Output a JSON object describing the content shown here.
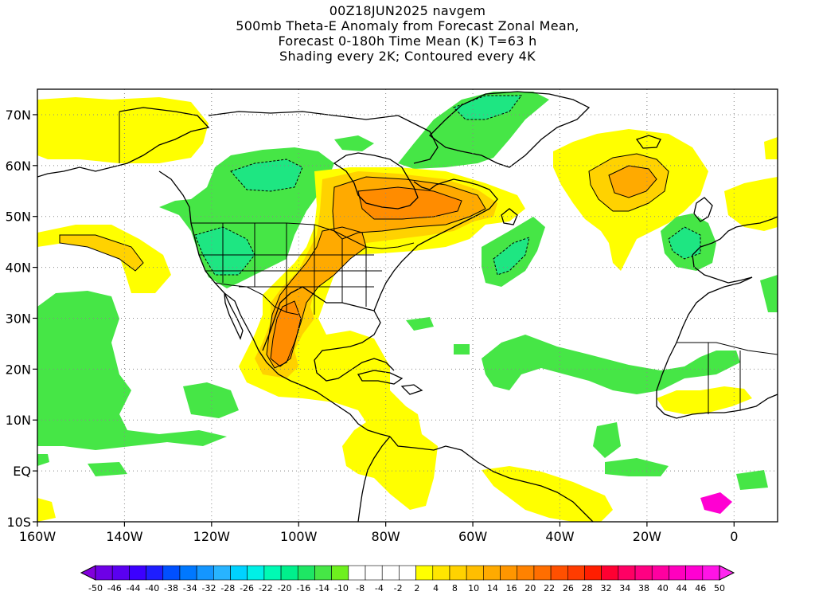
{
  "titles": [
    "00Z18JUN2025 navgem",
    "500mb Theta-E Anomaly from Forecast Zonal Mean,",
    "Forecast 0-180h Time Mean (K) T=63 h",
    "Shading every 2K; Contoured every 4K"
  ],
  "map": {
    "lon_range": [
      -160,
      10
    ],
    "lat_range": [
      -10,
      75
    ],
    "lat_labels": [
      {
        "lat": 70,
        "label": "70N"
      },
      {
        "lat": 60,
        "label": "60N"
      },
      {
        "lat": 50,
        "label": "50N"
      },
      {
        "lat": 40,
        "label": "40N"
      },
      {
        "lat": 30,
        "label": "30N"
      },
      {
        "lat": 20,
        "label": "20N"
      },
      {
        "lat": 10,
        "label": "10N"
      },
      {
        "lat": 0,
        "label": "EQ"
      },
      {
        "lat": -10,
        "label": "10S"
      }
    ],
    "lon_labels": [
      {
        "lon": -160,
        "label": "160W"
      },
      {
        "lon": -140,
        "label": "140W"
      },
      {
        "lon": -120,
        "label": "120W"
      },
      {
        "lon": -100,
        "label": "100W"
      },
      {
        "lon": -80,
        "label": "80W"
      },
      {
        "lon": -60,
        "label": "60W"
      },
      {
        "lon": -40,
        "label": "40W"
      },
      {
        "lon": -20,
        "label": "20W"
      },
      {
        "lon": 0,
        "label": "0"
      }
    ],
    "grid": true
  },
  "colorbar": {
    "colors": [
      "#8200dc",
      "#6e00e6",
      "#5a00f0",
      "#3c00ff",
      "#1e1eff",
      "#0050ff",
      "#0078ff",
      "#1496ff",
      "#28b4ff",
      "#00d2ff",
      "#00f0e6",
      "#00fab4",
      "#00f08c",
      "#1ee664",
      "#46e646",
      "#6ef01e",
      "#ffffff",
      "#ffffff",
      "#ffffff",
      "#ffffff",
      "#ffff00",
      "#ffe600",
      "#ffd200",
      "#ffbe00",
      "#ffaa00",
      "#ff9600",
      "#ff8200",
      "#ff6e00",
      "#ff5000",
      "#ff3c00",
      "#ff1e00",
      "#ff0032",
      "#ff0064",
      "#ff0082",
      "#ff00a0",
      "#ff00be",
      "#ff00d2",
      "#ff14e6",
      "#ff28f0"
    ],
    "labels": [
      "-50",
      "-46",
      "-44",
      "-40",
      "-38",
      "-34",
      "-32",
      "-28",
      "-26",
      "-22",
      "-20",
      "-16",
      "-14",
      "-10",
      "-8",
      "-4",
      "-2",
      "2",
      "4",
      "8",
      "10",
      "14",
      "16",
      "20",
      "22",
      "26",
      "28",
      "32",
      "34",
      "38",
      "40",
      "44",
      "46",
      "50"
    ]
  },
  "colors": {
    "green": "#46e646",
    "light_green": "#6ef01e",
    "teal_green": "#1ee682",
    "yellow": "#ffff00",
    "gold": "#ffd200",
    "orange": "#ffaa00",
    "dark_orange": "#ff8c00"
  }
}
